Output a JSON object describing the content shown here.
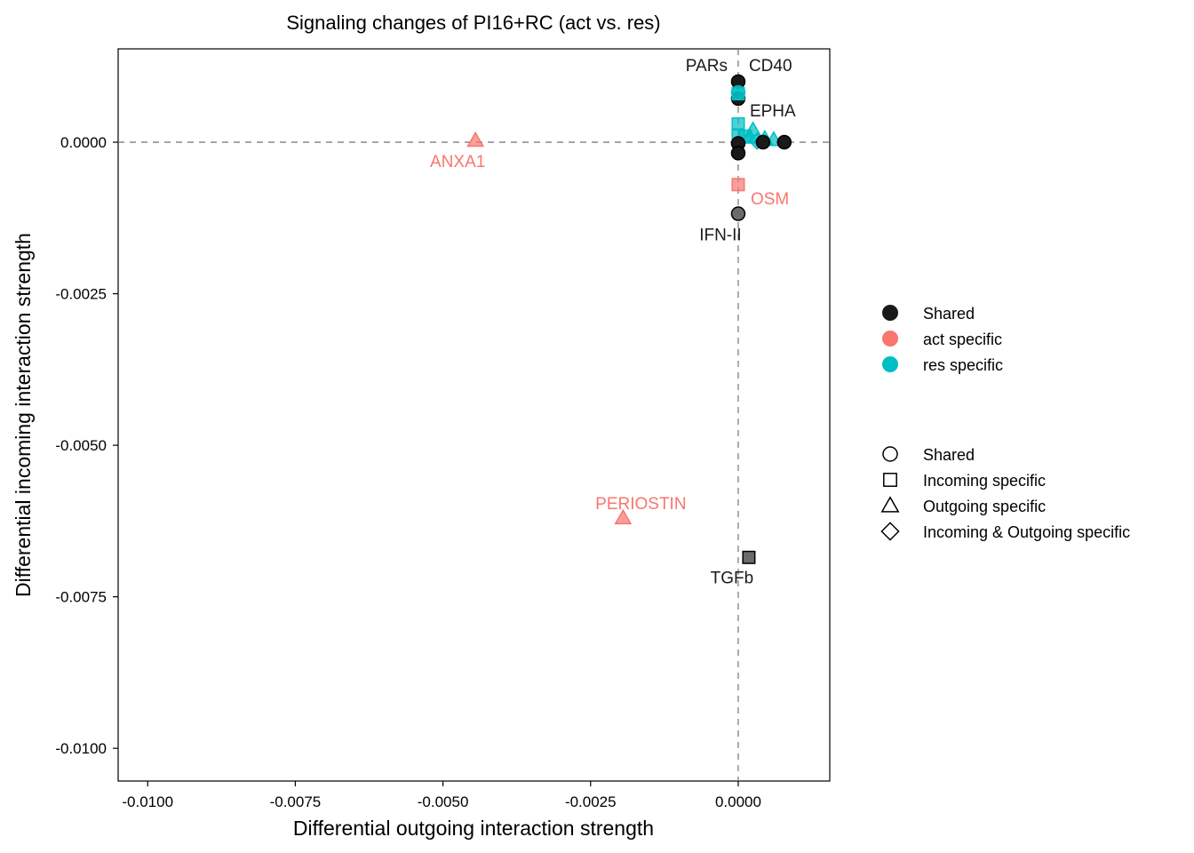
{
  "chart_data": {
    "type": "scatter",
    "title": "Signaling changes of PI16+RC (act vs. res)",
    "xlabel": "Differential outgoing interaction strength",
    "ylabel": "Differential incoming interaction strength",
    "xlim": [
      -0.0105,
      0.00155
    ],
    "ylim": [
      -0.01054,
      0.00154
    ],
    "x_ticks": [
      {
        "value": -0.01,
        "label": "-0.0100"
      },
      {
        "value": -0.0075,
        "label": "-0.0075"
      },
      {
        "value": -0.005,
        "label": "-0.0050"
      },
      {
        "value": -0.0025,
        "label": "-0.0025"
      },
      {
        "value": 0,
        "label": "0.0000"
      }
    ],
    "y_ticks": [
      {
        "value": 0,
        "label": "0.0000"
      },
      {
        "value": -0.0025,
        "label": "-0.0025"
      },
      {
        "value": -0.005,
        "label": "-0.0050"
      },
      {
        "value": -0.0075,
        "label": "-0.0075"
      },
      {
        "value": -0.01,
        "label": "-0.0100"
      }
    ],
    "reference_lines": {
      "x": 0,
      "y": 0,
      "style": "dashed"
    },
    "grid": false,
    "legend_position": "right",
    "color_legend": [
      {
        "label": "Shared",
        "color": "#1a1a1a"
      },
      {
        "label": "act specific",
        "color": "#f8766d"
      },
      {
        "label": "res specific",
        "color": "#00bfc4"
      }
    ],
    "shape_legend": [
      {
        "label": "Shared",
        "shape": "circle"
      },
      {
        "label": "Incoming specific",
        "shape": "square"
      },
      {
        "label": "Outgoing specific",
        "shape": "triangle"
      },
      {
        "label": "Incoming & Outgoing specific",
        "shape": "diamond"
      }
    ],
    "points": [
      {
        "x": 0.0,
        "y": 0.001,
        "color": "shared",
        "shape": "circle"
      },
      {
        "x": 0.0,
        "y": 0.00072,
        "color": "shared",
        "shape": "circle"
      },
      {
        "x": 0.0,
        "y": 0.00082,
        "color": "res",
        "shape": "circle"
      },
      {
        "x": 0.0,
        "y": 0.0008,
        "color": "res",
        "shape": "square"
      },
      {
        "x": 0.0,
        "y": 0.0003,
        "color": "res",
        "shape": "square"
      },
      {
        "x": 0.0,
        "y": 0.00012,
        "color": "res",
        "shape": "square"
      },
      {
        "x": 0.00012,
        "y": 0.0001,
        "color": "res",
        "shape": "square"
      },
      {
        "x": 0.00025,
        "y": 0.0002,
        "color": "res",
        "shape": "triangle"
      },
      {
        "x": 0.0002,
        "y": 8e-05,
        "color": "res",
        "shape": "triangle"
      },
      {
        "x": 0.00045,
        "y": 6e-05,
        "color": "res",
        "shape": "triangle"
      },
      {
        "x": 0.0006,
        "y": 4e-05,
        "color": "res",
        "shape": "triangle"
      },
      {
        "x": 0.00032,
        "y": 2e-05,
        "color": "res",
        "shape": "diamond"
      },
      {
        "x": 0.0,
        "y": -2e-05,
        "color": "shared",
        "shape": "circle"
      },
      {
        "x": 0.0,
        "y": -0.00018,
        "color": "shared",
        "shape": "circle"
      },
      {
        "x": 0.00042,
        "y": 0.0,
        "color": "shared",
        "shape": "circle"
      },
      {
        "x": 0.00078,
        "y": 0.0,
        "color": "shared",
        "shape": "circle"
      },
      {
        "x": 0.0,
        "y": -0.0007,
        "color": "act",
        "shape": "square"
      },
      {
        "x": 0.0,
        "y": -0.00118,
        "color": "shared",
        "shape": "circle"
      },
      {
        "x": -0.00445,
        "y": 3e-05,
        "color": "act",
        "shape": "triangle"
      },
      {
        "x": -0.00195,
        "y": -0.0062,
        "color": "act",
        "shape": "triangle"
      },
      {
        "x": 0.00018,
        "y": -0.00685,
        "color": "shared",
        "shape": "square"
      }
    ],
    "annotations": [
      {
        "text": "PARs",
        "x": 0.0,
        "y": 0.001,
        "color": "shared",
        "anchor": "end",
        "dx": -12,
        "dy": -12
      },
      {
        "text": "CD40",
        "x": 0.0,
        "y": 0.001,
        "color": "shared",
        "anchor": "start",
        "dx": 12,
        "dy": -12
      },
      {
        "text": "EPHA",
        "x": 0.0,
        "y": 0.00072,
        "color": "shared",
        "anchor": "start",
        "dx": 13,
        "dy": 20
      },
      {
        "text": "ANXA1",
        "x": -0.00445,
        "y": 3e-05,
        "color": "act",
        "anchor": "middle",
        "dx": -20,
        "dy": 30
      },
      {
        "text": "OSM",
        "x": 0.0,
        "y": -0.0007,
        "color": "act",
        "anchor": "start",
        "dx": 14,
        "dy": 22
      },
      {
        "text": "IFN-II",
        "x": 0.0,
        "y": -0.00118,
        "color": "shared",
        "anchor": "middle",
        "dx": -20,
        "dy": 30
      },
      {
        "text": "PERIOSTIN",
        "x": -0.00195,
        "y": -0.0062,
        "color": "act",
        "anchor": "middle",
        "dx": 20,
        "dy": -10
      },
      {
        "text": "TGFb",
        "x": 0.00018,
        "y": -0.00685,
        "color": "shared",
        "anchor": "middle",
        "dx": -19,
        "dy": 29
      }
    ]
  }
}
